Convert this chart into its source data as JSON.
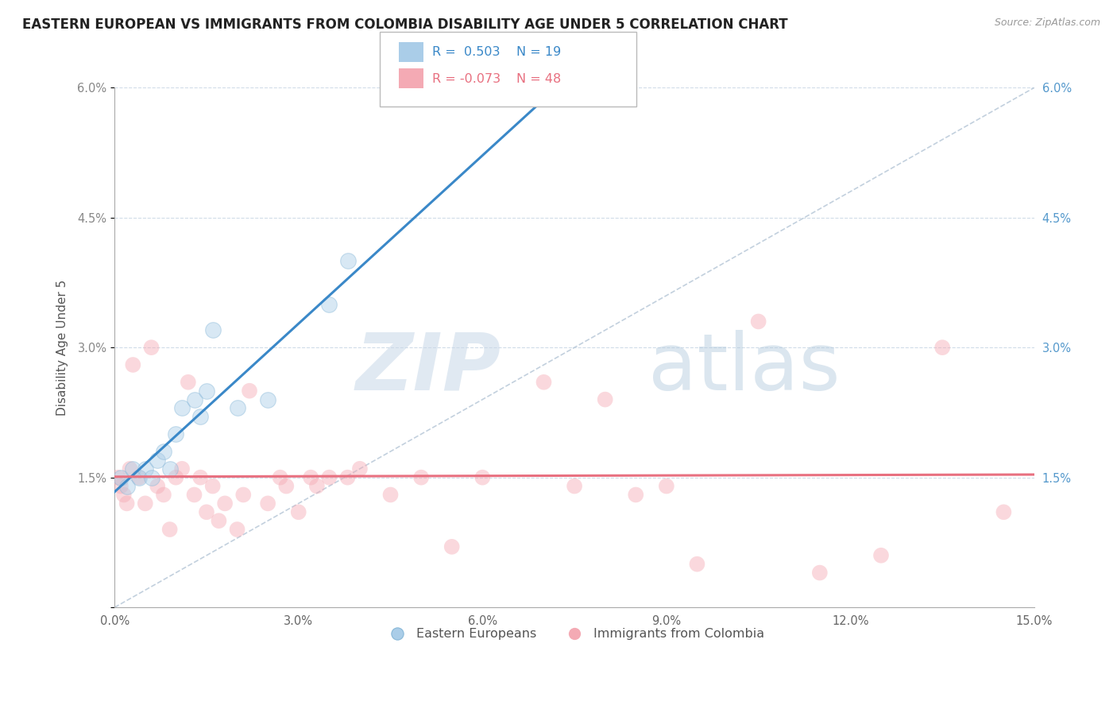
{
  "title": "EASTERN EUROPEAN VS IMMIGRANTS FROM COLOMBIA DISABILITY AGE UNDER 5 CORRELATION CHART",
  "source": "Source: ZipAtlas.com",
  "xlabel": "",
  "ylabel": "Disability Age Under 5",
  "xlim": [
    0.0,
    15.0
  ],
  "ylim": [
    0.0,
    6.0
  ],
  "xticks": [
    0.0,
    3.0,
    6.0,
    9.0,
    12.0,
    15.0
  ],
  "xtick_labels": [
    "0.0%",
    "3.0%",
    "6.0%",
    "9.0%",
    "12.0%",
    "15.0%"
  ],
  "yticks": [
    0.0,
    1.5,
    3.0,
    4.5,
    6.0
  ],
  "ytick_labels_left": [
    "",
    "1.5%",
    "3.0%",
    "4.5%",
    "6.0%"
  ],
  "ytick_labels_right": [
    "",
    "1.5%",
    "3.0%",
    "4.5%",
    "6.0%"
  ],
  "legend_items": [
    {
      "label_r": "R =  0.503",
      "label_n": "N = 19",
      "color": "#6ab0dc"
    },
    {
      "label_r": "R = -0.073",
      "label_n": "N = 48",
      "color": "#f07080"
    }
  ],
  "blue_scatter_x": [
    0.1,
    0.2,
    0.3,
    0.4,
    0.5,
    0.6,
    0.7,
    0.8,
    0.9,
    1.0,
    1.1,
    1.3,
    1.4,
    1.5,
    1.6,
    2.0,
    2.5,
    3.5,
    3.8
  ],
  "blue_scatter_y": [
    1.5,
    1.4,
    1.6,
    1.5,
    1.6,
    1.5,
    1.7,
    1.8,
    1.6,
    2.0,
    2.3,
    2.4,
    2.2,
    2.5,
    3.2,
    2.3,
    2.4,
    3.5,
    4.0
  ],
  "pink_scatter_x": [
    0.05,
    0.1,
    0.15,
    0.2,
    0.25,
    0.3,
    0.4,
    0.5,
    0.6,
    0.7,
    0.8,
    0.9,
    1.0,
    1.1,
    1.2,
    1.3,
    1.4,
    1.5,
    1.6,
    1.7,
    1.8,
    2.0,
    2.1,
    2.2,
    2.5,
    2.7,
    2.8,
    3.0,
    3.2,
    3.3,
    3.5,
    3.8,
    4.0,
    4.5,
    5.0,
    5.5,
    6.0,
    7.0,
    7.5,
    8.0,
    8.5,
    9.0,
    9.5,
    10.5,
    11.5,
    12.5,
    13.5,
    14.5
  ],
  "pink_scatter_y": [
    1.5,
    1.4,
    1.3,
    1.2,
    1.6,
    2.8,
    1.5,
    1.2,
    3.0,
    1.4,
    1.3,
    0.9,
    1.5,
    1.6,
    2.6,
    1.3,
    1.5,
    1.1,
    1.4,
    1.0,
    1.2,
    0.9,
    1.3,
    2.5,
    1.2,
    1.5,
    1.4,
    1.1,
    1.5,
    1.4,
    1.5,
    1.5,
    1.6,
    1.3,
    1.5,
    0.7,
    1.5,
    2.6,
    1.4,
    2.4,
    1.3,
    1.4,
    0.5,
    3.3,
    0.4,
    0.6,
    3.0,
    1.1
  ],
  "blue_color": "#aacde8",
  "pink_color": "#f4aab4",
  "blue_line_color": "#3a88c8",
  "pink_line_color": "#e87080",
  "ref_line_color": "#b8c8d8",
  "grid_color": "#d0dce8",
  "background_color": "#ffffff",
  "watermark_zip": "ZIP",
  "watermark_atlas": "atlas",
  "title_fontsize": 12,
  "axis_fontsize": 11,
  "tick_fontsize": 10.5,
  "scatter_size": 200,
  "scatter_alpha": 0.45
}
